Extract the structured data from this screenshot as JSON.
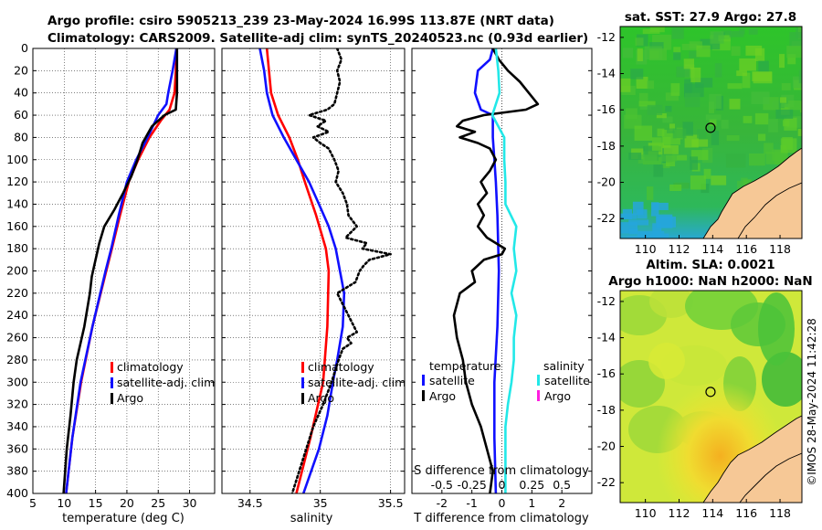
{
  "header": {
    "title_line1": "Argo profile: csiro 5905213_239 23-May-2024 16.99S 113.87E (NRT data)",
    "title_line2": "Climatology: CARS2009. Satellite-adj clim: synTS_20240523.nc (0.93d earlier)"
  },
  "credit": "©IMOS 28-May-2024 11:42:28",
  "colors": {
    "climatology": "#ff0000",
    "satellite": "#1010ff",
    "argo": "#000000",
    "salinity_satellite": "#22e8e8",
    "salinity_argo": "#ff1ee0",
    "land": "#f6c896"
  },
  "chart_data": [
    {
      "type": "line",
      "id": "temperature",
      "xlabel": "temperature (deg C)",
      "ylabel": "",
      "xlim": [
        5,
        34
      ],
      "ylim": [
        0,
        400
      ],
      "y_reversed": true,
      "xticks": [
        "5",
        "10",
        "15",
        "20",
        "25",
        "30"
      ],
      "xtick_values": [
        5,
        10,
        15,
        20,
        25,
        30
      ],
      "yticks": [
        "0",
        "20",
        "40",
        "60",
        "80",
        "100",
        "120",
        "140",
        "160",
        "180",
        "200",
        "220",
        "240",
        "260",
        "280",
        "300",
        "320",
        "340",
        "360",
        "380",
        "400"
      ],
      "ytick_values": [
        0,
        20,
        40,
        60,
        80,
        100,
        120,
        140,
        160,
        180,
        200,
        220,
        240,
        260,
        280,
        300,
        320,
        340,
        360,
        380,
        400
      ],
      "grid": true,
      "legend": [
        "climatology",
        "satellite-adj. clim",
        "Argo"
      ],
      "series": [
        {
          "name": "climatology",
          "color": "#ff0000",
          "depth": [
            0,
            20,
            40,
            55,
            65,
            80,
            100,
            120,
            150,
            180,
            200,
            250,
            300,
            350,
            400
          ],
          "values": [
            27.9,
            27.8,
            27.6,
            26.8,
            25.4,
            23.6,
            21.8,
            20.3,
            18.9,
            17.6,
            16.7,
            14.5,
            12.7,
            11.3,
            10.3
          ]
        },
        {
          "name": "satellite-adj. clim",
          "color": "#1010ff",
          "depth": [
            0,
            20,
            40,
            50,
            60,
            80,
            100,
            120,
            150,
            180,
            200,
            250,
            300,
            350,
            400
          ],
          "values": [
            27.9,
            27.3,
            26.6,
            26.3,
            25.0,
            23.3,
            21.5,
            20.0,
            18.7,
            17.5,
            16.6,
            14.5,
            12.6,
            11.3,
            10.3
          ]
        },
        {
          "name": "Argo",
          "color": "#000000",
          "depth": [
            0,
            20,
            40,
            55,
            60,
            70,
            85,
            100,
            115,
            130,
            145,
            160,
            175,
            190,
            205,
            220,
            250,
            280,
            300,
            330,
            360,
            400
          ],
          "values": [
            28.0,
            28.0,
            28.0,
            27.8,
            26.0,
            24.0,
            22.5,
            21.7,
            20.7,
            19.4,
            18.0,
            16.4,
            15.6,
            15.0,
            14.4,
            14.1,
            13.2,
            12.0,
            11.5,
            11.0,
            10.4,
            9.9
          ]
        }
      ]
    },
    {
      "type": "line",
      "id": "salinity",
      "xlabel": "salinity",
      "xlim": [
        34.3,
        35.6
      ],
      "ylim": [
        0,
        400
      ],
      "y_reversed": true,
      "xticks": [
        "34.5",
        "35",
        "35.5"
      ],
      "xtick_values": [
        34.5,
        35,
        35.5
      ],
      "grid": true,
      "legend": [
        "climatology",
        "satellite-adj. clim",
        "Argo"
      ],
      "series": [
        {
          "name": "climatology",
          "color": "#ff0000",
          "depth": [
            0,
            40,
            60,
            80,
            100,
            120,
            150,
            180,
            200,
            250,
            300,
            350,
            400
          ],
          "values": [
            34.62,
            34.65,
            34.7,
            34.78,
            34.84,
            34.89,
            34.97,
            35.04,
            35.06,
            35.05,
            35.02,
            34.93,
            34.83
          ]
        },
        {
          "name": "satellite-adj. clim",
          "color": "#1010ff",
          "depth": [
            0,
            20,
            40,
            60,
            80,
            100,
            120,
            140,
            160,
            180,
            200,
            220,
            250,
            280,
            300,
            330,
            360,
            400
          ],
          "values": [
            34.57,
            34.6,
            34.62,
            34.66,
            34.74,
            34.83,
            34.92,
            34.99,
            35.06,
            35.11,
            35.14,
            35.17,
            35.16,
            35.12,
            35.09,
            35.05,
            34.99,
            34.88
          ]
        },
        {
          "name": "Argo",
          "color": "#000000",
          "dotted": true,
          "depth": [
            0,
            10,
            20,
            30,
            40,
            50,
            55,
            60,
            65,
            70,
            75,
            80,
            85,
            90,
            100,
            110,
            120,
            130,
            140,
            150,
            160,
            170,
            175,
            180,
            185,
            190,
            195,
            200,
            210,
            220,
            240,
            255,
            260,
            265,
            270,
            280,
            300,
            320,
            340,
            360,
            380,
            400
          ],
          "values": [
            35.12,
            35.15,
            35.12,
            35.14,
            35.12,
            35.1,
            35.05,
            34.92,
            35.04,
            34.98,
            35.06,
            34.95,
            35.0,
            35.06,
            35.1,
            35.13,
            35.11,
            35.16,
            35.19,
            35.2,
            35.26,
            35.18,
            35.33,
            35.3,
            35.5,
            35.35,
            35.31,
            35.28,
            35.25,
            35.12,
            35.2,
            35.26,
            35.19,
            35.22,
            35.16,
            35.13,
            35.08,
            35.02,
            34.95,
            34.9,
            34.85,
            34.8
          ]
        }
      ]
    },
    {
      "type": "line",
      "id": "difference",
      "xlabel": "T difference from climatology",
      "xlabel_top": "S difference from climatology",
      "xlim": [
        -3,
        3
      ],
      "xlim_salinity": [
        -0.75,
        0.75
      ],
      "ylim": [
        0,
        400
      ],
      "y_reversed": true,
      "xticks": [
        "-2",
        "-1",
        "0",
        "1",
        "2"
      ],
      "xtick_values": [
        -2,
        -1,
        0,
        1,
        2
      ],
      "xticks_salinity": [
        "-0.5",
        "-0.25",
        "0",
        "0.25",
        "0.5"
      ],
      "xtick_values_salinity": [
        -0.5,
        -0.25,
        0,
        0.25,
        0.5
      ],
      "legend_headers": [
        "temperature",
        "salinity"
      ],
      "legend_left": [
        "satellite",
        "Argo"
      ],
      "legend_right": [
        "satellite",
        "Argo"
      ],
      "series": [
        {
          "name": "temperature satellite",
          "color": "#1010ff",
          "units": "T",
          "depth": [
            0,
            10,
            20,
            40,
            55,
            60,
            80,
            100,
            120,
            150,
            200,
            250,
            300,
            350,
            400
          ],
          "values": [
            -0.3,
            -0.4,
            -0.8,
            -0.9,
            -0.7,
            -0.3,
            -0.3,
            -0.25,
            -0.2,
            -0.15,
            -0.1,
            -0.15,
            -0.25,
            -0.25,
            -0.2
          ]
        },
        {
          "name": "temperature Argo",
          "color": "#000000",
          "units": "T",
          "depth": [
            0,
            10,
            20,
            30,
            40,
            50,
            55,
            60,
            65,
            70,
            75,
            80,
            85,
            90,
            100,
            110,
            120,
            130,
            140,
            150,
            160,
            170,
            180,
            185,
            190,
            200,
            210,
            220,
            240,
            260,
            280,
            300,
            320,
            340,
            360,
            380,
            400
          ],
          "values": [
            -0.3,
            -0.1,
            0.2,
            0.6,
            0.9,
            1.2,
            0.8,
            -0.6,
            -1.3,
            -1.5,
            -0.9,
            -1.4,
            -0.8,
            -0.4,
            -0.2,
            -0.4,
            -0.7,
            -0.5,
            -0.8,
            -0.6,
            -0.8,
            -0.5,
            0.1,
            0,
            -0.6,
            -1.0,
            -0.9,
            -1.4,
            -1.6,
            -1.5,
            -1.3,
            -1.2,
            -1.0,
            -0.7,
            -0.5,
            -0.3,
            -0.4
          ]
        },
        {
          "name": "salinity satellite",
          "color": "#22e8e8",
          "units": "S",
          "depth": [
            0,
            20,
            40,
            60,
            80,
            100,
            120,
            140,
            160,
            180,
            200,
            220,
            240,
            260,
            280,
            300,
            320,
            340,
            360,
            380,
            400
          ],
          "values": [
            -0.05,
            -0.03,
            -0.02,
            -0.08,
            0.02,
            0.02,
            0.03,
            0.03,
            0.12,
            0.1,
            0.12,
            0.08,
            0.12,
            0.1,
            0.1,
            0.08,
            0.05,
            0.03,
            0.03,
            0.03,
            0.03
          ]
        }
      ]
    },
    {
      "type": "heatmap",
      "id": "sst_map",
      "title": "sat. SST: 27.9 Argo: 27.8",
      "xticks": [
        "110",
        "112",
        "114",
        "116",
        "118"
      ],
      "xtick_values": [
        110,
        112,
        114,
        116,
        118
      ],
      "yticks": [
        "-12",
        "-14",
        "-16",
        "-18",
        "-20",
        "-22"
      ],
      "ytick_values": [
        -12,
        -14,
        -16,
        -18,
        -20,
        -22
      ],
      "xlim": [
        108.5,
        119.3
      ],
      "ylim": [
        -23.1,
        -11.4
      ],
      "marker": {
        "lon": 113.87,
        "lat": -16.99
      }
    },
    {
      "type": "heatmap",
      "id": "sla_map",
      "title_line1": "Altim. SLA: 0.0021",
      "title_line2": "Argo h1000: NaN h2000: NaN",
      "xticks": [
        "110",
        "112",
        "114",
        "116",
        "118"
      ],
      "xtick_values": [
        110,
        112,
        114,
        116,
        118
      ],
      "yticks": [
        "-12",
        "-14",
        "-16",
        "-18",
        "-20",
        "-22"
      ],
      "ytick_values": [
        -12,
        -14,
        -16,
        -18,
        -20,
        -22
      ],
      "xlim": [
        108.5,
        119.3
      ],
      "ylim": [
        -23.1,
        -11.4
      ],
      "marker": {
        "lon": 113.87,
        "lat": -16.99
      }
    }
  ]
}
